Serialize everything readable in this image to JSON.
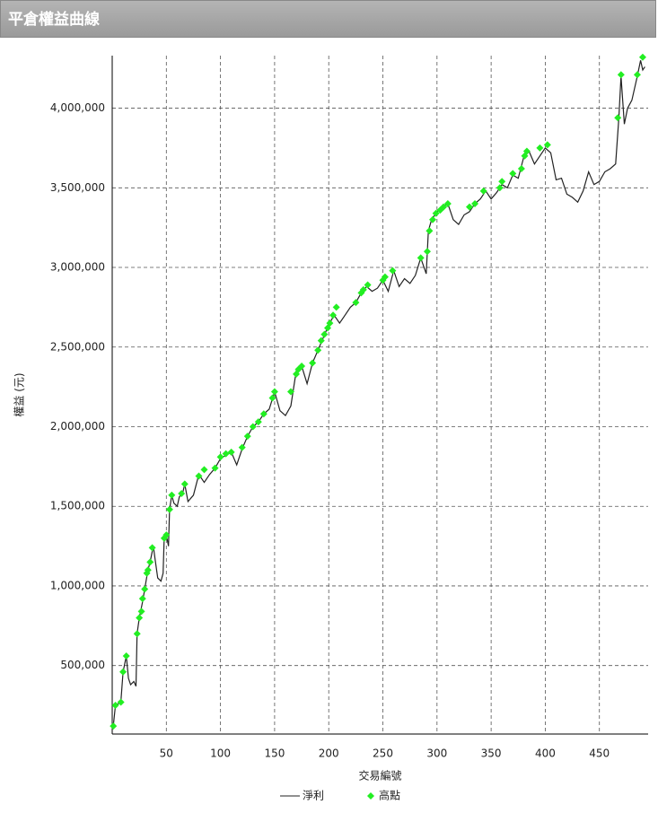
{
  "header": {
    "title": "平倉權益曲線"
  },
  "chart_data": {
    "type": "line",
    "x_label": "交易編號",
    "y_label": "權益 (元)",
    "xlim": [
      0,
      495
    ],
    "ylim": [
      70000,
      4330000
    ],
    "xticks": [
      50,
      100,
      150,
      200,
      250,
      300,
      350,
      400,
      450
    ],
    "yticks": [
      {
        "value": 500000,
        "label": "500,000"
      },
      {
        "value": 1000000,
        "label": "1,000,000"
      },
      {
        "value": 1500000,
        "label": "1,500,000"
      },
      {
        "value": 2000000,
        "label": "2,000,000"
      },
      {
        "value": 2500000,
        "label": "2,500,000"
      },
      {
        "value": 3000000,
        "label": "3,000,000"
      },
      {
        "value": 3500000,
        "label": "3,500,000"
      },
      {
        "value": 4000000,
        "label": "4,000,000"
      }
    ],
    "grid": true,
    "series": [
      {
        "name": "淨利",
        "kind": "line",
        "color": "#222222",
        "x": [
          1,
          3,
          8,
          10,
          13,
          15,
          17,
          20,
          22,
          23,
          25,
          28,
          30,
          33,
          35,
          38,
          40,
          42,
          45,
          47,
          48,
          50,
          52,
          53,
          55,
          57,
          60,
          62,
          65,
          67,
          70,
          75,
          80,
          85,
          90,
          95,
          100,
          105,
          110,
          115,
          120,
          125,
          130,
          135,
          140,
          145,
          150,
          155,
          160,
          165,
          170,
          175,
          180,
          185,
          190,
          195,
          200,
          205,
          210,
          215,
          220,
          225,
          230,
          235,
          240,
          245,
          250,
          255,
          260,
          265,
          270,
          275,
          280,
          285,
          290,
          292,
          295,
          300,
          305,
          310,
          315,
          320,
          325,
          330,
          335,
          340,
          345,
          350,
          355,
          360,
          365,
          370,
          375,
          380,
          385,
          390,
          395,
          400,
          405,
          410,
          415,
          420,
          425,
          430,
          435,
          440,
          445,
          450,
          455,
          460,
          465,
          468,
          470,
          473,
          476,
          480,
          485,
          488,
          490,
          492
        ],
        "values": [
          120000,
          250000,
          270000,
          460000,
          560000,
          420000,
          380000,
          400000,
          370000,
          700000,
          800000,
          900000,
          980000,
          1100000,
          1150000,
          1250000,
          1150000,
          1050000,
          1030000,
          1080000,
          1300000,
          1320000,
          1250000,
          1480000,
          1570000,
          1520000,
          1500000,
          1560000,
          1580000,
          1640000,
          1530000,
          1570000,
          1700000,
          1650000,
          1700000,
          1740000,
          1800000,
          1820000,
          1840000,
          1760000,
          1860000,
          1940000,
          2000000,
          2030000,
          2080000,
          2110000,
          2220000,
          2100000,
          2070000,
          2130000,
          2350000,
          2380000,
          2270000,
          2400000,
          2480000,
          2560000,
          2640000,
          2700000,
          2650000,
          2700000,
          2750000,
          2780000,
          2840000,
          2880000,
          2850000,
          2870000,
          2920000,
          2850000,
          2980000,
          2880000,
          2930000,
          2900000,
          2950000,
          3060000,
          2960000,
          3230000,
          3300000,
          3350000,
          3380000,
          3400000,
          3300000,
          3270000,
          3330000,
          3350000,
          3400000,
          3430000,
          3480000,
          3430000,
          3470000,
          3520000,
          3500000,
          3580000,
          3560000,
          3690000,
          3730000,
          3650000,
          3700000,
          3750000,
          3720000,
          3550000,
          3560000,
          3460000,
          3440000,
          3410000,
          3480000,
          3600000,
          3520000,
          3540000,
          3600000,
          3620000,
          3650000,
          3940000,
          4200000,
          3900000,
          4000000,
          4050000,
          4200000,
          4300000,
          4240000,
          4260000
        ]
      },
      {
        "name": "高點",
        "kind": "scatter",
        "color": "#22ee22",
        "x": [
          1,
          3,
          8,
          10,
          13,
          23,
          25,
          27,
          28,
          30,
          32,
          33,
          35,
          37,
          48,
          50,
          53,
          55,
          64,
          67,
          80,
          85,
          95,
          100,
          105,
          110,
          120,
          125,
          130,
          135,
          140,
          148,
          150,
          165,
          170,
          172,
          175,
          185,
          190,
          193,
          196,
          199,
          201,
          204,
          207,
          225,
          230,
          232,
          236,
          250,
          252,
          259,
          285,
          291,
          293,
          296,
          299,
          303,
          306,
          310,
          330,
          335,
          343,
          358,
          360,
          370,
          378,
          381,
          383,
          395,
          402,
          467,
          470,
          485,
          490
        ],
        "values": [
          120000,
          250000,
          270000,
          460000,
          560000,
          700000,
          800000,
          840000,
          920000,
          980000,
          1080000,
          1100000,
          1150000,
          1240000,
          1300000,
          1320000,
          1480000,
          1570000,
          1580000,
          1640000,
          1690000,
          1730000,
          1740000,
          1810000,
          1830000,
          1840000,
          1870000,
          1940000,
          2000000,
          2030000,
          2080000,
          2180000,
          2220000,
          2220000,
          2330000,
          2360000,
          2380000,
          2400000,
          2480000,
          2540000,
          2580000,
          2620000,
          2650000,
          2700000,
          2750000,
          2780000,
          2840000,
          2860000,
          2890000,
          2920000,
          2940000,
          2980000,
          3060000,
          3100000,
          3230000,
          3300000,
          3340000,
          3360000,
          3380000,
          3400000,
          3380000,
          3400000,
          3480000,
          3500000,
          3540000,
          3590000,
          3620000,
          3700000,
          3730000,
          3750000,
          3770000,
          3940000,
          4210000,
          4210000,
          4320000
        ]
      }
    ]
  }
}
